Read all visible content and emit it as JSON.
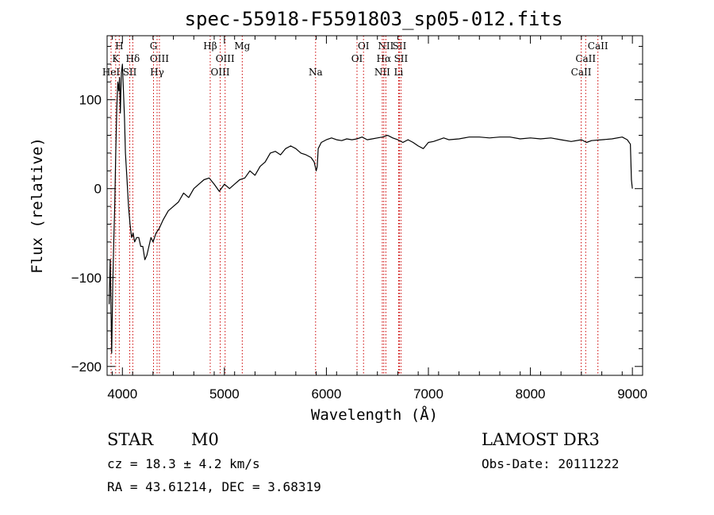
{
  "chart_data": {
    "type": "line",
    "title": "spec-55918-F5591803_sp05-012.fits",
    "xlabel": "Wavelength (Å)",
    "ylabel": "Flux (relative)",
    "xlim": [
      3850,
      9100
    ],
    "ylim": [
      -210,
      172
    ],
    "xticks": [
      {
        "value": 4000,
        "label": "4000"
      },
      {
        "value": 5000,
        "label": "5000"
      },
      {
        "value": 6000,
        "label": "6000"
      },
      {
        "value": 7000,
        "label": "7000"
      },
      {
        "value": 8000,
        "label": "8000"
      },
      {
        "value": 9000,
        "label": "9000"
      }
    ],
    "yticks": [
      {
        "value": 100,
        "label": "100"
      },
      {
        "value": 0,
        "label": "0"
      },
      {
        "value": -100,
        "label": "−100"
      },
      {
        "value": -200,
        "label": "−200"
      }
    ],
    "series": [
      {
        "name": "spectrum",
        "x": [
          3870,
          3880,
          3895,
          3905,
          3915,
          3925,
          3935,
          3945,
          3955,
          3965,
          3972,
          3980,
          3990,
          4000,
          4010,
          4020,
          4030,
          4045,
          4060,
          4075,
          4090,
          4105,
          4120,
          4140,
          4160,
          4180,
          4200,
          4220,
          4240,
          4260,
          4280,
          4300,
          4330,
          4360,
          4400,
          4450,
          4500,
          4550,
          4600,
          4650,
          4700,
          4750,
          4800,
          4850,
          4900,
          4950,
          5000,
          5050,
          5100,
          5150,
          5200,
          5250,
          5300,
          5350,
          5400,
          5450,
          5500,
          5550,
          5600,
          5650,
          5700,
          5750,
          5800,
          5850,
          5880,
          5900,
          5910,
          5920,
          5950,
          6000,
          6050,
          6100,
          6150,
          6200,
          6250,
          6300,
          6350,
          6400,
          6450,
          6500,
          6550,
          6600,
          6650,
          6700,
          6750,
          6800,
          6850,
          6900,
          6950,
          7000,
          7050,
          7100,
          7150,
          7200,
          7300,
          7400,
          7500,
          7600,
          7700,
          7800,
          7900,
          8000,
          8100,
          8200,
          8300,
          8400,
          8500,
          8550,
          8600,
          8700,
          8800,
          8900,
          8950,
          8980,
          8990,
          9000
        ],
        "values": [
          -130,
          -80,
          -185,
          -110,
          -60,
          -20,
          40,
          90,
          120,
          110,
          125,
          85,
          130,
          140,
          110,
          80,
          40,
          10,
          -20,
          -40,
          -55,
          -50,
          -60,
          -55,
          -55,
          -65,
          -65,
          -80,
          -75,
          -65,
          -55,
          -60,
          -50,
          -45,
          -35,
          -25,
          -20,
          -15,
          -5,
          -10,
          0,
          5,
          10,
          12,
          5,
          -3,
          5,
          0,
          5,
          10,
          12,
          20,
          15,
          25,
          30,
          40,
          42,
          38,
          45,
          48,
          45,
          40,
          38,
          35,
          30,
          20,
          25,
          45,
          52,
          55,
          57,
          55,
          54,
          56,
          55,
          56,
          58,
          55,
          56,
          57,
          58,
          60,
          57,
          55,
          52,
          55,
          52,
          48,
          45,
          52,
          53,
          55,
          57,
          55,
          56,
          58,
          58,
          57,
          58,
          58,
          56,
          57,
          56,
          57,
          55,
          53,
          55,
          52,
          54,
          55,
          56,
          58,
          55,
          50,
          10,
          0
        ]
      }
    ],
    "line_markers": [
      {
        "label": "K",
        "x": 3934,
        "row": 2
      },
      {
        "label": "H",
        "x": 3969,
        "row": 1
      },
      {
        "label": "HeI",
        "x": 3889,
        "row": 3
      },
      {
        "label": "SII",
        "x": 4072,
        "row": 3
      },
      {
        "label": "Hδ",
        "x": 4102,
        "row": 2
      },
      {
        "label": "G",
        "x": 4305,
        "row": 1
      },
      {
        "label": "OIII",
        "x": 4363,
        "row": 2
      },
      {
        "label": "Hγ",
        "x": 4340,
        "row": 3
      },
      {
        "label": "Hβ",
        "x": 4861,
        "row": 1
      },
      {
        "label": "OIII",
        "x": 5007,
        "row": 2
      },
      {
        "label": "OIII",
        "x": 4959,
        "row": 3
      },
      {
        "label": "Mg",
        "x": 5175,
        "row": 1
      },
      {
        "label": "Na",
        "x": 5894,
        "row": 3
      },
      {
        "label": "OI",
        "x": 6364,
        "row": 1
      },
      {
        "label": "OI",
        "x": 6300,
        "row": 2
      },
      {
        "label": "NII",
        "x": 6583,
        "row": 1
      },
      {
        "label": "SII",
        "x": 6716,
        "row": 1
      },
      {
        "label": "Hα",
        "x": 6563,
        "row": 2
      },
      {
        "label": "SII",
        "x": 6731,
        "row": 2
      },
      {
        "label": "NII",
        "x": 6548,
        "row": 3
      },
      {
        "label": "Li",
        "x": 6708,
        "row": 3
      },
      {
        "label": "CaII",
        "x": 8662,
        "row": 1
      },
      {
        "label": "CaII",
        "x": 8542,
        "row": 2
      },
      {
        "label": "CaII",
        "x": 8498,
        "row": 3
      }
    ]
  },
  "info": {
    "class": "STAR",
    "subclass": "M0",
    "survey": "LAMOST DR3",
    "cz": "cz = 18.3 ± 4.2 km/s",
    "obs_date": "Obs-Date: 20111222",
    "coords": "RA =  43.61214, DEC =   3.68319"
  },
  "colors": {
    "spectrum": "#000000",
    "marker": "#cc0000"
  }
}
